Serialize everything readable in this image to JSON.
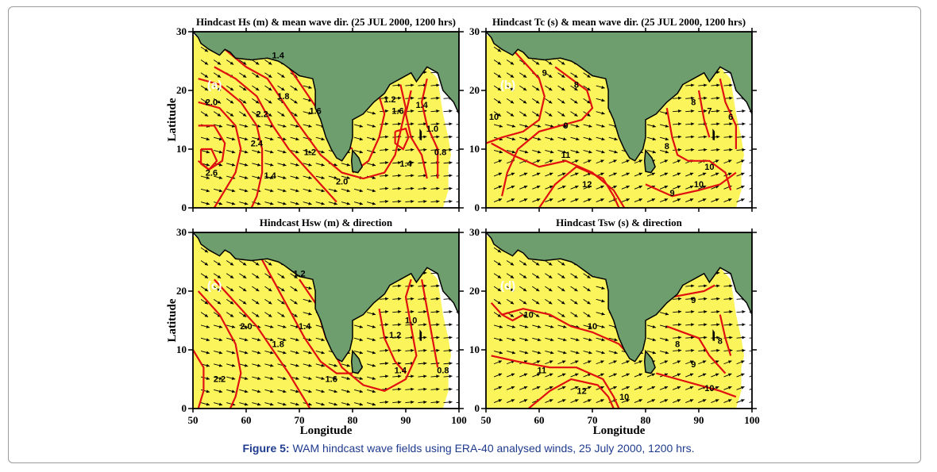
{
  "caption": {
    "label": "Figure 5:",
    "text": "WAM hindcast wave fields using ERA-40 analysed winds, 25 July 2000, 1200 hrs."
  },
  "axes": {
    "xlabel": "Longitude",
    "ylabel": "Latitude",
    "x_ticks": [
      "50",
      "60",
      "70",
      "80",
      "90",
      "100"
    ],
    "y_ticks": [
      "0",
      "10",
      "20",
      "30"
    ],
    "x_range": [
      50,
      100
    ],
    "y_range": [
      0,
      30
    ]
  },
  "colors": {
    "sea": "#fbf45a",
    "land": "#6e9e6e",
    "contour": "#e01010",
    "arrow": "#000000"
  },
  "panels": [
    {
      "label": "(a)",
      "title": "Hindcast Hs (m) & mean wave dir. (25 JUL 2000, 1200 hrs)",
      "contour_labels": [
        "1.4",
        "1.8",
        "2.0",
        "2.2",
        "2.4",
        "2.6",
        "1.6",
        "1.2",
        "1.4",
        "2.0",
        "1.6",
        "1.2",
        "1.4",
        "1.0",
        "0.8",
        "1.4"
      ]
    },
    {
      "label": "(b)",
      "title": "Hindcast Tc (s) & mean wave dir. (25 JUL 2000, 1200 hrs)",
      "contour_labels": [
        "9",
        "8",
        "10",
        "9",
        "11",
        "12",
        "10",
        "8",
        "7",
        "6",
        "8",
        "10",
        "9"
      ]
    },
    {
      "label": "(c)",
      "title": "Hindcast Hsw (m) & direction",
      "contour_labels": [
        "1.2",
        "2.0",
        "1.8",
        "1.4",
        "2.2",
        "1.2",
        "1.0",
        "1.6",
        "1.4",
        "0.8"
      ]
    },
    {
      "label": "(d)",
      "title": "Hindcast Tsw (s) & direction",
      "contour_labels": [
        "10",
        "10",
        "11",
        "12",
        "9",
        "8",
        "9",
        "10",
        "8",
        "10"
      ]
    }
  ]
}
